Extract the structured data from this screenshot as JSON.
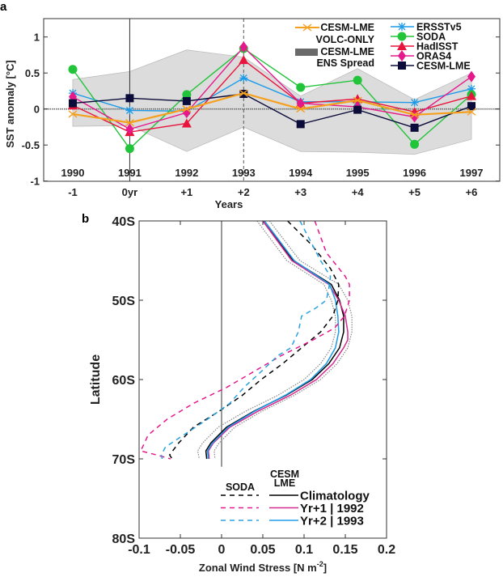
{
  "chart_data": [
    {
      "panel_label": "a",
      "type": "line",
      "ylabel": "SST anomaly [°C]",
      "xlabel": "Years",
      "categories": [
        "-1",
        "0yr",
        "+1",
        "+2",
        "+3",
        "+4",
        "+5",
        "+6"
      ],
      "years": [
        "1990",
        "1991",
        "1992",
        "1993",
        "1994",
        "1995",
        "1996",
        "1997"
      ],
      "ylim": [
        -1,
        1.25
      ],
      "yticks": [
        -1,
        -0.5,
        0,
        0.5,
        1
      ],
      "ytick_labels": [
        "-1",
        "-0.5",
        "0",
        "0.5",
        "1"
      ],
      "reference_lines": {
        "vertical_solid": "0yr",
        "vertical_dashed": "+2",
        "horizontal_dotted": 0
      },
      "spread": {
        "legend_line1": "CESM-LME",
        "legend_line2": "ENS Spread",
        "color": "#dcdcdc",
        "upper": [
          0.41,
          0.52,
          0.82,
          0.72,
          0.18,
          0.56,
          0.13,
          0.5
        ],
        "lower": [
          -0.24,
          -0.23,
          -0.59,
          -0.25,
          -0.59,
          -0.6,
          -0.63,
          -0.42
        ]
      },
      "series": [
        {
          "name": "CESM-LME VOLC-ONLY",
          "legend_line1": "CESM-LME",
          "legend_line2": "VOLC-ONLY",
          "color": "#f5a01e",
          "marker": "x",
          "values": [
            -0.07,
            -0.19,
            0.0,
            0.22,
            0.0,
            0.12,
            -0.08,
            -0.04
          ]
        },
        {
          "name": "ERSSTv5",
          "legend_line1": "ERSSTv5",
          "color": "#1e9be8",
          "marker": "asterisk",
          "values": [
            0.22,
            -0.02,
            -0.03,
            0.43,
            0.1,
            0.1,
            0.09,
            0.28
          ]
        },
        {
          "name": "SODA",
          "legend_line1": "SODA",
          "color": "#22c43a",
          "marker": "circle",
          "values": [
            0.55,
            -0.55,
            0.2,
            0.84,
            0.3,
            0.4,
            -0.49,
            0.2
          ]
        },
        {
          "name": "HadISST",
          "legend_line1": "HadISST",
          "color": "#e8143c",
          "marker": "triangle",
          "values": [
            0.05,
            -0.32,
            -0.2,
            0.68,
            0.08,
            0.14,
            -0.04,
            0.18
          ]
        },
        {
          "name": "ORAS4",
          "legend_line1": "ORAS4",
          "color": "#e6198c",
          "marker": "diamond",
          "values": [
            0.17,
            -0.28,
            -0.05,
            0.86,
            0.08,
            0.03,
            -0.11,
            0.45
          ]
        },
        {
          "name": "CESM-LME",
          "legend_line1": "CESM-LME",
          "color": "#0c0c3a",
          "marker": "square",
          "values": [
            0.08,
            0.15,
            0.11,
            0.21,
            -0.21,
            -0.01,
            -0.26,
            0.04
          ]
        }
      ]
    },
    {
      "panel_label": "b",
      "type": "line",
      "ylabel": "Latitude",
      "xlabel": "Zonal Wind Stress [N m",
      "xlabel_sup": "-2",
      "xlabel_end": "]",
      "xlim": [
        -0.1,
        0.2
      ],
      "ylim_lat_south": [
        40,
        80
      ],
      "xticks": [
        -0.1,
        -0.05,
        0,
        0.05,
        0.1,
        0.15,
        0.2
      ],
      "xtick_labels": [
        "-0.1",
        "-0.05",
        "0",
        "0.05",
        "0.1",
        "0.15",
        "0.2"
      ],
      "yticks": [
        40,
        50,
        60,
        70,
        80
      ],
      "ytick_labels": [
        "40S",
        "50S",
        "60S",
        "70S",
        "80S"
      ],
      "legend": {
        "col1_header": "SODA",
        "col2_header_line1": "CESM",
        "col2_header_line2": "LME",
        "rows": [
          "Climatology",
          "Yr+1 | 1992",
          "Yr+2 | 1993"
        ]
      },
      "series": [
        {
          "name": "CESM-LME range lower",
          "dataset": "CESM-LME",
          "style": "dotted",
          "color": "#888888",
          "lat": [
            40,
            45,
            48,
            50,
            52,
            54,
            56,
            58,
            60,
            62,
            64,
            66,
            68,
            69,
            70
          ],
          "tau": [
            0.043,
            0.079,
            0.124,
            0.133,
            0.138,
            0.138,
            0.133,
            0.12,
            0.1,
            0.068,
            0.029,
            -0.004,
            -0.023,
            -0.029,
            -0.027
          ]
        },
        {
          "name": "CESM-LME range upper",
          "dataset": "CESM-LME",
          "style": "dotted",
          "color": "#888888",
          "lat": [
            40,
            45,
            48,
            50,
            52,
            54,
            56,
            58,
            60,
            62,
            64,
            66,
            68,
            69,
            70
          ],
          "tau": [
            0.058,
            0.095,
            0.142,
            0.153,
            0.158,
            0.158,
            0.153,
            0.14,
            0.12,
            0.088,
            0.049,
            0.016,
            -0.003,
            -0.009,
            -0.008
          ]
        },
        {
          "name": "CESM-LME Climatology",
          "dataset": "CESM-LME",
          "style": "solid",
          "color": "#000000",
          "lat": [
            40,
            45,
            48,
            50,
            52,
            54,
            56,
            58,
            60,
            62,
            64,
            66,
            68,
            69,
            70
          ],
          "tau": [
            0.05,
            0.087,
            0.133,
            0.143,
            0.148,
            0.148,
            0.143,
            0.13,
            0.11,
            0.078,
            0.039,
            0.006,
            -0.013,
            -0.019,
            -0.018
          ]
        },
        {
          "name": "CESM-LME Yr+1 1992",
          "dataset": "CESM-LME",
          "style": "solid",
          "color": "#d6288f",
          "lat": [
            40,
            45,
            48,
            50,
            52,
            54,
            55,
            56,
            58,
            60,
            62,
            64,
            66,
            68,
            69,
            70
          ],
          "tau": [
            0.05,
            0.085,
            0.13,
            0.142,
            0.15,
            0.153,
            0.153,
            0.148,
            0.135,
            0.115,
            0.083,
            0.044,
            0.01,
            -0.01,
            -0.016,
            -0.015
          ]
        },
        {
          "name": "CESM-LME Yr+2 1993",
          "dataset": "CESM-LME",
          "style": "solid",
          "color": "#1e9be8",
          "lat": [
            40,
            45,
            48,
            50,
            52,
            54,
            56,
            58,
            60,
            62,
            64,
            66,
            68,
            69,
            70
          ],
          "tau": [
            0.052,
            0.088,
            0.131,
            0.138,
            0.141,
            0.142,
            0.138,
            0.127,
            0.108,
            0.077,
            0.04,
            0.008,
            -0.011,
            -0.017,
            -0.016
          ]
        },
        {
          "name": "SODA Climatology",
          "dataset": "SODA",
          "style": "dashed",
          "color": "#000000",
          "lat": [
            40,
            43,
            46,
            48,
            50,
            52,
            54,
            56,
            58,
            60,
            62,
            64,
            66,
            68,
            69.5,
            70
          ],
          "tau": [
            0.08,
            0.109,
            0.132,
            0.142,
            0.141,
            0.135,
            0.12,
            0.097,
            0.074,
            0.048,
            0.025,
            -0.003,
            -0.034,
            -0.052,
            -0.063,
            -0.06
          ]
        },
        {
          "name": "SODA Yr+1 1992",
          "dataset": "SODA",
          "style": "dashed",
          "color": "#e6198c",
          "lat": [
            40,
            44,
            47,
            48,
            50,
            52,
            53.5,
            55,
            57,
            59,
            61,
            63,
            65,
            67,
            69,
            69.5,
            70
          ],
          "tau": [
            0.113,
            0.127,
            0.15,
            0.155,
            0.155,
            0.149,
            0.137,
            0.111,
            0.072,
            0.039,
            0.006,
            -0.034,
            -0.066,
            -0.089,
            -0.098,
            -0.079,
            -0.062
          ]
        },
        {
          "name": "SODA Yr+2 1993",
          "dataset": "SODA",
          "style": "dashed",
          "color": "#29a3e0",
          "lat": [
            40,
            45,
            47,
            48.5,
            50,
            51,
            52,
            54,
            56,
            57,
            59,
            61,
            63,
            65,
            67,
            68.5,
            69.5,
            70
          ],
          "tau": [
            0.095,
            0.12,
            0.132,
            0.13,
            0.127,
            0.114,
            0.097,
            0.093,
            0.084,
            0.068,
            0.048,
            0.027,
            0.01,
            -0.017,
            -0.046,
            -0.068,
            -0.073,
            -0.072
          ]
        }
      ]
    }
  ]
}
